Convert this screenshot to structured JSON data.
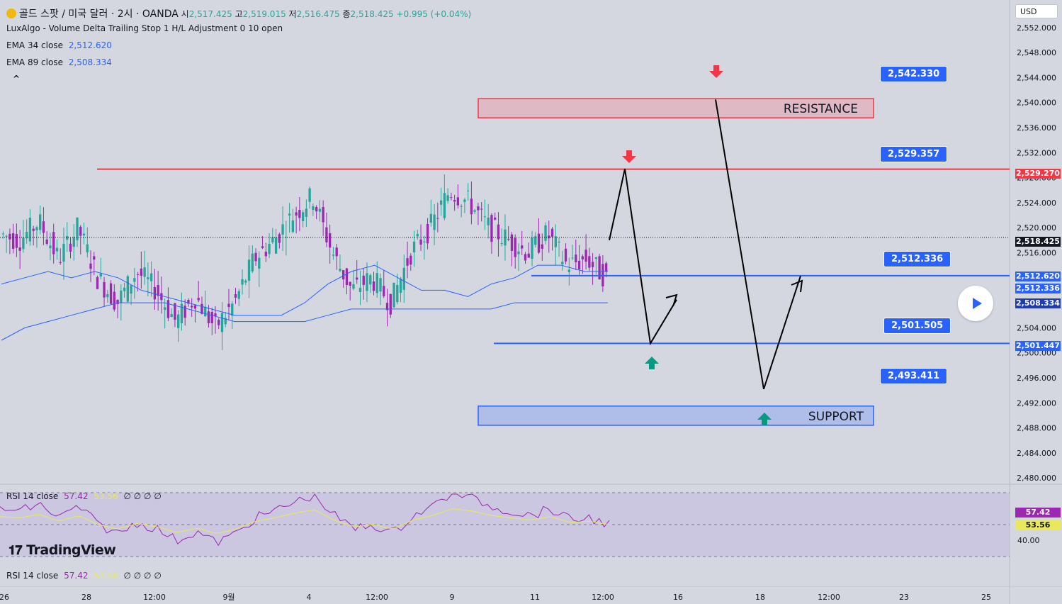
{
  "header": {
    "symbol": "골드 스팟 / 미국 달러 · 2시 · OANDA",
    "o_label": "시",
    "o": "2,517.425",
    "h_label": "고",
    "h": "2,519.015",
    "l_label": "저",
    "l": "2,516.475",
    "c_label": "종",
    "c": "2,518.425",
    "change": "+0.995 (+0.04%)",
    "indicator1": "LuxAlgo - Volume Delta Trailing Stop 1 H/L Adjustment 0 10 open",
    "ema34_label": "EMA 34 close",
    "ema34_value": "2,512.620",
    "ema89_label": "EMA 89 close",
    "ema89_value": "2,508.334",
    "collapse": "^"
  },
  "currency": "USD",
  "rsi": {
    "label": "RSI 14 close",
    "value": "57.42",
    "ma": "53.56",
    "extra": "∅ ∅ ∅ ∅",
    "axis_label": "40.00",
    "tag_value": "57.42",
    "tag_ma": "53.56"
  },
  "rsi_bottom": {
    "label": "RSI 14 close",
    "value": "57.42",
    "ma": "53.56",
    "extra": "∅ ∅ ∅ ∅"
  },
  "zones": {
    "resistance": "RESISTANCE",
    "support": "SUPPORT"
  },
  "level_tags": [
    "2,542.330",
    "2,529.357",
    "2,512.336",
    "2,501.505",
    "2,493.411"
  ],
  "price_tags": {
    "red": "2,529.270",
    "current": "2,518.425",
    "ema34": "2,512.620",
    "level": "2,512.336",
    "ema89": "2,508.334",
    "low": "2,501.447"
  },
  "brand": "TradingView",
  "colors": {
    "bull": "#26a69a",
    "bear": "#9c27b0",
    "accent": "#2962ff",
    "red": "#f23645"
  },
  "chart_data": {
    "type": "line",
    "title": "골드 스팟 / 미국 달러 · 2시 · OANDA",
    "ylim": [
      2479,
      2553
    ],
    "y_ticks": [
      "2,552.000",
      "2,548.000",
      "2,544.000",
      "2,540.000",
      "2,536.000",
      "2,532.000",
      "2,528.000",
      "2,524.000",
      "2,520.000",
      "2,516.000",
      "2,504.000",
      "2,500.000",
      "2,496.000",
      "2,492.000",
      "2,488.000",
      "2,484.000",
      "2,480.000"
    ],
    "x_ticks": [
      "26",
      "28",
      "12:00",
      "9월",
      "4",
      "12:00",
      "9",
      "11",
      "12:00",
      "16",
      "18",
      "12:00",
      "23",
      "25"
    ],
    "levels": [
      2542.33,
      2529.357,
      2512.336,
      2501.505,
      2493.411
    ],
    "price_path": [
      2519,
      2518,
      2521,
      2515,
      2520,
      2512,
      2508,
      2513,
      2510,
      2505,
      2509,
      2504,
      2508,
      2515,
      2518,
      2522,
      2525,
      2516,
      2510,
      2512,
      2508,
      2516,
      2520,
      2526,
      2524,
      2520,
      2518,
      2516,
      2519,
      2514,
      2515,
      2512
    ],
    "series": [
      {
        "name": "EMA 34 close",
        "values": [
          2511,
          2512,
          2513,
          2512,
          2513,
          2512,
          2510,
          2509,
          2508,
          2507,
          2506,
          2506,
          2506,
          2508,
          2511,
          2513,
          2514,
          2512,
          2510,
          2510,
          2509,
          2511,
          2512,
          2514,
          2514,
          2513,
          2513
        ]
      },
      {
        "name": "EMA 89 close",
        "values": [
          2502,
          2504,
          2505,
          2506,
          2507,
          2508,
          2508,
          2508,
          2507,
          2506,
          2505,
          2505,
          2505,
          2505,
          2506,
          2507,
          2507,
          2507,
          2507,
          2507,
          2507,
          2507,
          2508,
          2508,
          2508,
          2508,
          2508
        ]
      }
    ]
  }
}
